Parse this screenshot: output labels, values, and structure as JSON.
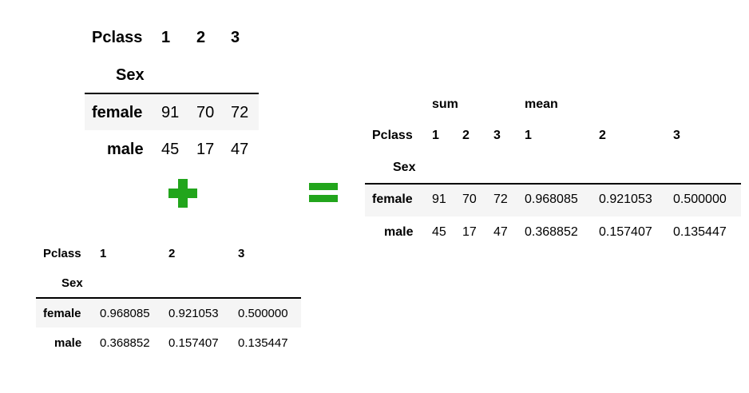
{
  "sum_table": {
    "columns_label": "Pclass",
    "index_label": "Sex",
    "columns": [
      "1",
      "2",
      "3"
    ],
    "rows": [
      {
        "label": "female",
        "values": [
          "91",
          "70",
          "72"
        ]
      },
      {
        "label": "male",
        "values": [
          "45",
          "17",
          "47"
        ]
      }
    ]
  },
  "mean_table": {
    "columns_label": "Pclass",
    "index_label": "Sex",
    "columns": [
      "1",
      "2",
      "3"
    ],
    "rows": [
      {
        "label": "female",
        "values": [
          "0.968085",
          "0.921053",
          "0.500000"
        ]
      },
      {
        "label": "male",
        "values": [
          "0.368852",
          "0.157407",
          "0.135447"
        ]
      }
    ]
  },
  "result_table": {
    "top_headers": [
      "sum",
      "mean"
    ],
    "columns_label": "Pclass",
    "index_label": "Sex",
    "columns": [
      "1",
      "2",
      "3",
      "1",
      "2",
      "3"
    ],
    "rows": [
      {
        "label": "female",
        "values": [
          "91",
          "70",
          "72",
          "0.968085",
          "0.921053",
          "0.500000"
        ]
      },
      {
        "label": "male",
        "values": [
          "45",
          "17",
          "47",
          "0.368852",
          "0.157407",
          "0.135447"
        ]
      }
    ]
  },
  "colors": {
    "operator": "#22a51c",
    "stripe": "#f5f5f5"
  },
  "operators": {
    "plus": "plus-icon",
    "equals": "equals-icon"
  }
}
